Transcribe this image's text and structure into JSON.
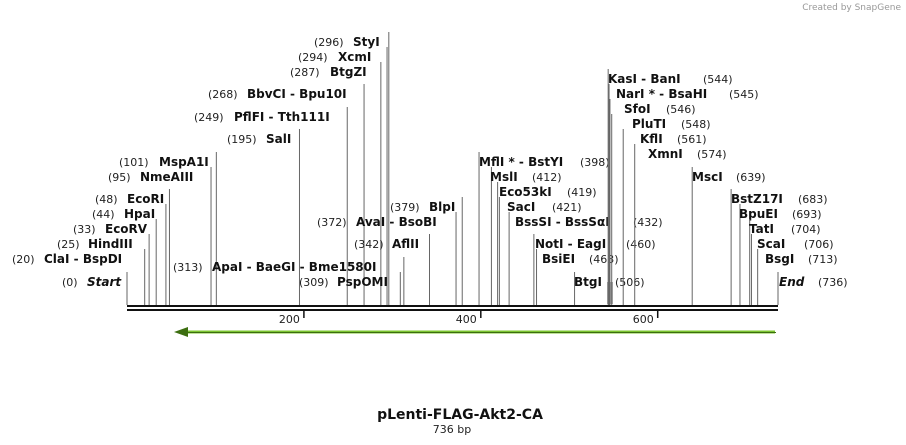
{
  "credit": "Created by SnapGene",
  "title": "pLenti-FLAG-Akt2-CA",
  "subtitle": "736 bp",
  "ticks": [
    "200",
    "400",
    "600"
  ],
  "enzymes": [
    {
      "name": "Start",
      "pos": "(0)"
    },
    {
      "name": "ClaI  -  BspDI",
      "pos": "(20)"
    },
    {
      "name": "HindIII",
      "pos": "(25)"
    },
    {
      "name": "EcoRV",
      "pos": "(33)"
    },
    {
      "name": "HpaI",
      "pos": "(44)"
    },
    {
      "name": "EcoRI",
      "pos": "(48)"
    },
    {
      "name": "NmeAIII",
      "pos": "(95)"
    },
    {
      "name": "MspA1I",
      "pos": "(101)"
    },
    {
      "name": "SalI",
      "pos": "(195)"
    },
    {
      "name": "PflFI  -  Tth111I",
      "pos": "(249)"
    },
    {
      "name": "BbvCI  -  Bpu10I",
      "pos": "(268)"
    },
    {
      "name": "BtgZI",
      "pos": "(287)"
    },
    {
      "name": "XcmI",
      "pos": "(294)"
    },
    {
      "name": "StyI",
      "pos": "(296)"
    },
    {
      "name": "ApaI  -  BaeGI  -  Bme1580I",
      "pos": "(313)"
    },
    {
      "name": "PspOMI",
      "pos": "(309)"
    },
    {
      "name": "AflII",
      "pos": "(342)"
    },
    {
      "name": "AvaI  -  BsoBI",
      "pos": "(372)"
    },
    {
      "name": "BlpI",
      "pos": "(379)"
    },
    {
      "name": "MflI *  -  BstYI",
      "pos": "(398)"
    },
    {
      "name": "MslI",
      "pos": "(412)"
    },
    {
      "name": "Eco53kI",
      "pos": "(419)"
    },
    {
      "name": "SacI",
      "pos": "(421)"
    },
    {
      "name": "BssSI  -  BssSαI",
      "pos": "(432)"
    },
    {
      "name": "NotI  -  EagI",
      "pos": "(460)"
    },
    {
      "name": "BsiEI",
      "pos": "(463)"
    },
    {
      "name": "BtgI",
      "pos": "(506)"
    },
    {
      "name": "KasI  -  BanI",
      "pos": "(544)"
    },
    {
      "name": "NarI *  -  BsaHI",
      "pos": "(545)"
    },
    {
      "name": "SfoI",
      "pos": "(546)"
    },
    {
      "name": "PluTI",
      "pos": "(548)"
    },
    {
      "name": "KflI",
      "pos": "(561)"
    },
    {
      "name": "XmnI",
      "pos": "(574)"
    },
    {
      "name": "MscI",
      "pos": "(639)"
    },
    {
      "name": "BstZ17I",
      "pos": "(683)"
    },
    {
      "name": "BpuEI",
      "pos": "(693)"
    },
    {
      "name": "TatI",
      "pos": "(704)"
    },
    {
      "name": "ScaI",
      "pos": "(706)"
    },
    {
      "name": "BsgI",
      "pos": "(713)"
    },
    {
      "name": "End",
      "pos": "(736)"
    }
  ]
}
